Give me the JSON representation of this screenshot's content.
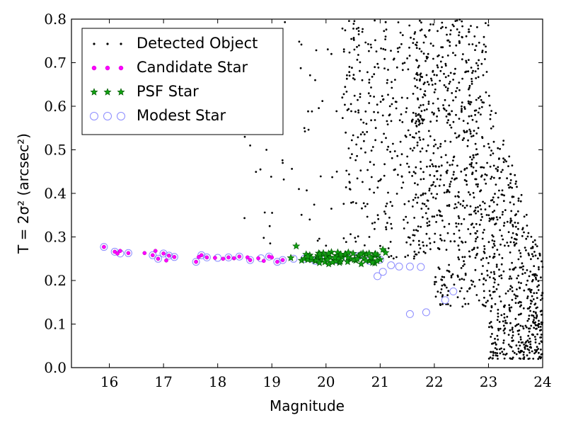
{
  "chart_data": {
    "type": "scatter",
    "xlabel": "Magnitude",
    "ylabel": "T = 2σ² (arcsec²)",
    "xlim": [
      15.3,
      24
    ],
    "ylim": [
      0.0,
      0.8
    ],
    "x_ticks": [
      "16",
      "17",
      "18",
      "19",
      "20",
      "21",
      "22",
      "23",
      "24"
    ],
    "y_ticks": [
      "0.0",
      "0.1",
      "0.2",
      "0.3",
      "0.4",
      "0.5",
      "0.6",
      "0.7",
      "0.8"
    ],
    "grid": false,
    "legend_placement": "top-left",
    "series": [
      {
        "name": "Detected Object",
        "marker": "dot",
        "color": "#000000",
        "description_count": 1500,
        "x": [
          18.5,
          18.6,
          18.9,
          19.0,
          19.2,
          19.5,
          19.6,
          19.7,
          19.8,
          20.0,
          20.1,
          20.2,
          20.3,
          20.5,
          20.6,
          20.7,
          20.8,
          20.9,
          21.0,
          21.1,
          21.2,
          21.3,
          21.4,
          21.5,
          21.6,
          21.7,
          21.8,
          21.9,
          22.0,
          22.1,
          22.2,
          22.3,
          22.4,
          22.5,
          22.6,
          22.7,
          22.8,
          22.9,
          23.0,
          23.1,
          23.2,
          23.3,
          23.4,
          23.5,
          23.6,
          23.7,
          23.8,
          23.9
        ],
        "y": [
          0.53,
          0.51,
          0.5,
          0.58,
          0.47,
          0.41,
          0.55,
          0.34,
          0.66,
          0.28,
          0.72,
          0.45,
          0.62,
          0.38,
          0.78,
          0.52,
          0.3,
          0.69,
          0.43,
          0.76,
          0.33,
          0.61,
          0.49,
          0.71,
          0.37,
          0.57,
          0.28,
          0.65,
          0.44,
          0.35,
          0.52,
          0.29,
          0.58,
          0.33,
          0.42,
          0.27,
          0.49,
          0.31,
          0.24,
          0.38,
          0.21,
          0.28,
          0.18,
          0.23,
          0.15,
          0.19,
          0.12,
          0.16
        ]
      },
      {
        "name": "Candidate Star",
        "marker": "circle",
        "color": "#ff00ff",
        "x": [
          15.9,
          16.1,
          16.15,
          16.2,
          16.35,
          16.65,
          16.8,
          16.85,
          16.9,
          17.0,
          17.05,
          17.1,
          17.2,
          17.6,
          17.65,
          17.7,
          17.8,
          17.95,
          18.1,
          18.2,
          18.3,
          18.4,
          18.55,
          18.6,
          18.75,
          18.85,
          18.95,
          19.0,
          19.1,
          19.2
        ],
        "y": [
          0.277,
          0.266,
          0.262,
          0.268,
          0.263,
          0.263,
          0.258,
          0.268,
          0.25,
          0.262,
          0.246,
          0.257,
          0.254,
          0.243,
          0.254,
          0.258,
          0.253,
          0.252,
          0.25,
          0.253,
          0.251,
          0.255,
          0.253,
          0.247,
          0.251,
          0.245,
          0.255,
          0.253,
          0.243,
          0.247
        ]
      },
      {
        "name": "PSF Star",
        "marker": "star",
        "color": "#008000",
        "x": [
          19.35,
          19.45,
          19.55,
          19.6,
          19.7,
          19.8,
          19.85,
          19.95,
          20.0,
          20.05,
          20.1,
          20.15,
          20.2,
          20.25,
          20.3,
          20.35,
          20.4,
          20.45,
          20.5,
          20.55,
          20.6,
          20.65,
          20.7,
          20.75,
          20.8,
          20.85,
          20.9,
          20.95,
          21.0,
          21.05,
          21.1
        ],
        "y": [
          0.252,
          0.279,
          0.246,
          0.25,
          0.258,
          0.245,
          0.252,
          0.263,
          0.255,
          0.238,
          0.265,
          0.247,
          0.257,
          0.241,
          0.253,
          0.26,
          0.243,
          0.25,
          0.262,
          0.246,
          0.256,
          0.238,
          0.25,
          0.26,
          0.245,
          0.252,
          0.24,
          0.258,
          0.248,
          0.271,
          0.264
        ]
      },
      {
        "name": "Modest Star",
        "marker": "open-circle",
        "color": "#8c8cff",
        "x": [
          15.9,
          16.1,
          16.2,
          16.35,
          16.8,
          16.9,
          17.0,
          17.1,
          17.2,
          17.6,
          17.7,
          17.8,
          18.0,
          18.2,
          18.4,
          18.6,
          18.8,
          18.95,
          19.1,
          19.2,
          19.4,
          19.6,
          19.8,
          20.0,
          20.2,
          20.4,
          20.6,
          20.8,
          21.0,
          20.95,
          21.05,
          21.2,
          21.35,
          21.55,
          21.75,
          21.55,
          21.85,
          22.2,
          22.35
        ],
        "y": [
          0.277,
          0.266,
          0.262,
          0.263,
          0.258,
          0.25,
          0.262,
          0.257,
          0.254,
          0.243,
          0.258,
          0.253,
          0.252,
          0.253,
          0.255,
          0.247,
          0.251,
          0.255,
          0.243,
          0.247,
          0.25,
          0.25,
          0.245,
          0.255,
          0.247,
          0.25,
          0.256,
          0.245,
          0.248,
          0.21,
          0.22,
          0.235,
          0.232,
          0.232,
          0.231,
          0.123,
          0.127,
          0.155,
          0.175
        ]
      }
    ]
  }
}
